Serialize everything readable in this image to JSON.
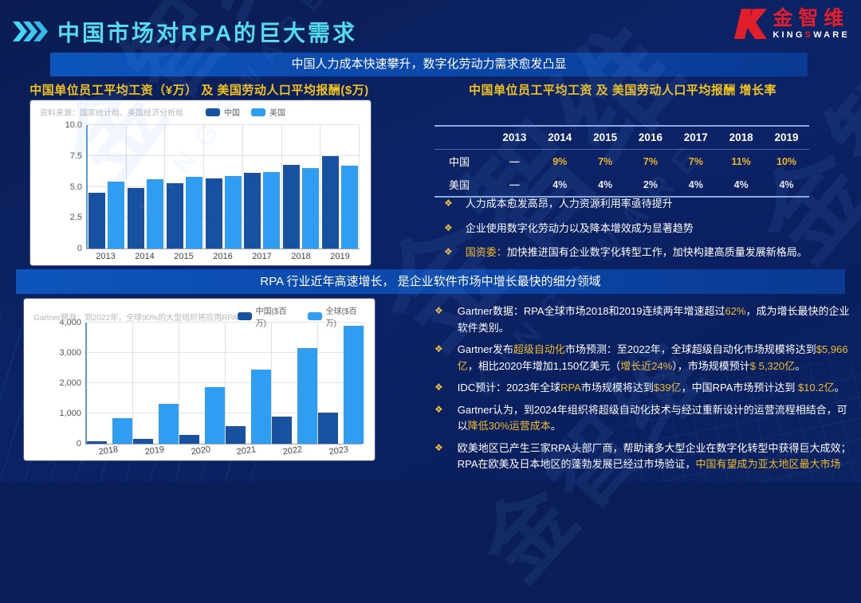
{
  "header": {
    "title": "中国市场对RPA的巨大需求",
    "logo": {
      "kanji": "金智维",
      "latin_parts": [
        "KING",
        "S",
        "WARE"
      ]
    }
  },
  "banner_top": "中国人力成本快速攀升，数字化劳动力需求愈发凸显",
  "banner_middle": "RPA 行业近年高速增长，  是企业软件市场中增长最快的细分领域",
  "colors": {
    "accent_cyan": "#55dcf2",
    "gold": "#f2bb2c",
    "banner_blue": "#0b49ab",
    "china_bar": "#17519f",
    "us_bar": "#2f9df2",
    "logo_red": "#e31e2b"
  },
  "sections": {
    "top_left": {
      "title": "中国单位员工平均工资（¥万） 及 美国劳动人口平均报酬($万)"
    },
    "top_right": {
      "title": "中国单位员工平均工资 及 美国劳动人口平均报酬 增长率"
    }
  },
  "growth_table": {
    "years": [
      "2013",
      "2014",
      "2015",
      "2016",
      "2017",
      "2018",
      "2019"
    ],
    "rows": [
      {
        "label": "中国",
        "gold": true,
        "values": [
          "—",
          "9%",
          "7%",
          "7%",
          "7%",
          "11%",
          "10%"
        ]
      },
      {
        "label": "美国",
        "gold": false,
        "values": [
          "—",
          "4%",
          "4%",
          "2%",
          "4%",
          "4%",
          "4%"
        ]
      }
    ]
  },
  "top_bullets": [
    {
      "runs": [
        {
          "t": "人力成本愈发高昂，人力资源利用率亟待提升"
        }
      ]
    },
    {
      "runs": [
        {
          "t": "企业使用数字化劳动力以及降本增效成为显著趋势"
        }
      ]
    },
    {
      "runs": [
        {
          "t": "国资委：",
          "gold": true
        },
        {
          "t": "加快推进国有企业数字化转型工作，加快构建高质量发展新格局。"
        }
      ]
    }
  ],
  "bottom_bullets": [
    {
      "runs": [
        {
          "t": "Gartner数据：RPA全球市场2018和2019连续两年增速超过"
        },
        {
          "t": "62%",
          "gold": true
        },
        {
          "t": "，成为增长最快的企业软件类别。"
        }
      ]
    },
    {
      "runs": [
        {
          "t": "Gartner发布"
        },
        {
          "t": "超级自动化",
          "gold": true
        },
        {
          "t": "市场预测：至2022年，全球超级自动化市场规模将达到"
        },
        {
          "t": "$5,966亿",
          "gold": true
        },
        {
          "t": "，相比2020年增加1,150亿美元（"
        },
        {
          "t": "增长近24%",
          "gold": true
        },
        {
          "t": "），市场规模预计"
        },
        {
          "t": "$ 5,320亿",
          "gold": true
        },
        {
          "t": "。"
        }
      ]
    },
    {
      "runs": [
        {
          "t": "IDC预计：2023年全球"
        },
        {
          "t": "RPA",
          "gold": true
        },
        {
          "t": "市场规模将达到"
        },
        {
          "t": "$39亿",
          "gold": true
        },
        {
          "t": "，中国RPA市场预计达到 "
        },
        {
          "t": "$10.2亿",
          "gold": true
        },
        {
          "t": "。"
        }
      ]
    },
    {
      "runs": [
        {
          "t": "Gartner认为，到2024年组织将超级自动化技术与经过重新设计的运营流程相结合，可以"
        },
        {
          "t": "降低30%运营成本",
          "gold": true
        },
        {
          "t": "。"
        }
      ]
    },
    {
      "runs": [
        {
          "t": "欧美地区已产生三家RPA头部厂商，帮助诸多大型企业在数字化转型中获得巨大成效；RPA在欧美及日本地区的蓬勃发展已经过市场验证，"
        },
        {
          "t": "中国有望成为亚太地区最大市场",
          "gold": true
        }
      ]
    }
  ],
  "chart_data": [
    {
      "type": "bar",
      "title": "中国单位员工平均工资（¥万） 及 美国劳动人口平均报酬($万)",
      "source_note": "资料来源：国家统计局、美国经济分析局",
      "categories": [
        "2013",
        "2014",
        "2015",
        "2016",
        "2017",
        "2018",
        "2019"
      ],
      "series": [
        {
          "name": "中国",
          "color": "#17519f",
          "values": [
            4.5,
            4.9,
            5.3,
            5.7,
            6.1,
            6.8,
            7.5
          ]
        },
        {
          "name": "美国",
          "color": "#2f9df2",
          "values": [
            5.4,
            5.6,
            5.8,
            5.9,
            6.2,
            6.5,
            6.7
          ]
        }
      ],
      "ylim": [
        0,
        10
      ],
      "ytick_values": [
        0,
        2.5,
        5,
        7.5,
        10
      ],
      "ytick_labels": [
        "0",
        "2.5",
        "5.0",
        "7.5",
        "10.0"
      ],
      "grid": true,
      "legend_position": "top"
    },
    {
      "type": "bar",
      "title": "Gartner预测：到2022年，全球90%的大型组织将应用RPA",
      "source_note": "Gartner预测：到2022年，全球90%的大型组织将应用RPA",
      "categories": [
        "2018",
        "2019",
        "2020",
        "2021",
        "2022",
        "2023"
      ],
      "series": [
        {
          "name": "中国($百万)",
          "color": "#17519f",
          "values": [
            80,
            170,
            280,
            580,
            890,
            1020
          ]
        },
        {
          "name": "全球($百万)",
          "color": "#2f9df2",
          "values": [
            830,
            1320,
            1880,
            2440,
            3150,
            3900
          ]
        }
      ],
      "ylim": [
        0,
        4000
      ],
      "ytick_values": [
        0,
        1000,
        2000,
        3000,
        4000
      ],
      "ytick_labels": [
        "0",
        "1,000",
        "2,000",
        "3,000",
        "4,000"
      ],
      "grid": true,
      "legend_position": "top"
    }
  ]
}
